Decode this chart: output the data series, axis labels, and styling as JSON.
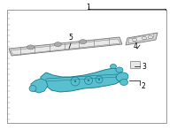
{
  "bg_color": "#ffffff",
  "border_color": "#999999",
  "border_lw": 0.7,
  "label1_text": "1",
  "label2_text": "2",
  "label3_text": "3",
  "label4_text": "4",
  "label5_text": "5",
  "label_fontsize": 5.5,
  "cyan_fill": "#5abfcf",
  "cyan_edge": "#1a8090",
  "gray_fill": "#d4d4d4",
  "gray_edge": "#777777",
  "gray_light": "#e8e8e8",
  "gray_dark": "#aaaaaa"
}
